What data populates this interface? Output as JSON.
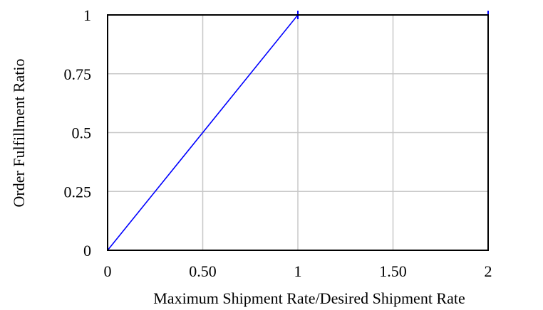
{
  "chart_data": {
    "type": "line",
    "title": "",
    "xlabel": "Maximum Shipment Rate/Desired Shipment Rate",
    "ylabel": "Order Fulfillment Ratio",
    "xlim": [
      0,
      2
    ],
    "ylim": [
      0,
      1
    ],
    "x_ticks": [
      {
        "value": 0,
        "label": "0"
      },
      {
        "value": 0.5,
        "label": "0.50"
      },
      {
        "value": 1,
        "label": "1"
      },
      {
        "value": 1.5,
        "label": "1.50"
      },
      {
        "value": 2,
        "label": "2"
      }
    ],
    "y_ticks": [
      {
        "value": 0,
        "label": "0"
      },
      {
        "value": 0.25,
        "label": "0.25"
      },
      {
        "value": 0.5,
        "label": "0.5"
      },
      {
        "value": 0.75,
        "label": "0.75"
      },
      {
        "value": 1,
        "label": "1"
      }
    ],
    "grid": true,
    "legend": "none",
    "series": [
      {
        "color": "#0000ff",
        "x": [
          0,
          1,
          2
        ],
        "y": [
          0,
          1,
          1
        ]
      }
    ]
  }
}
